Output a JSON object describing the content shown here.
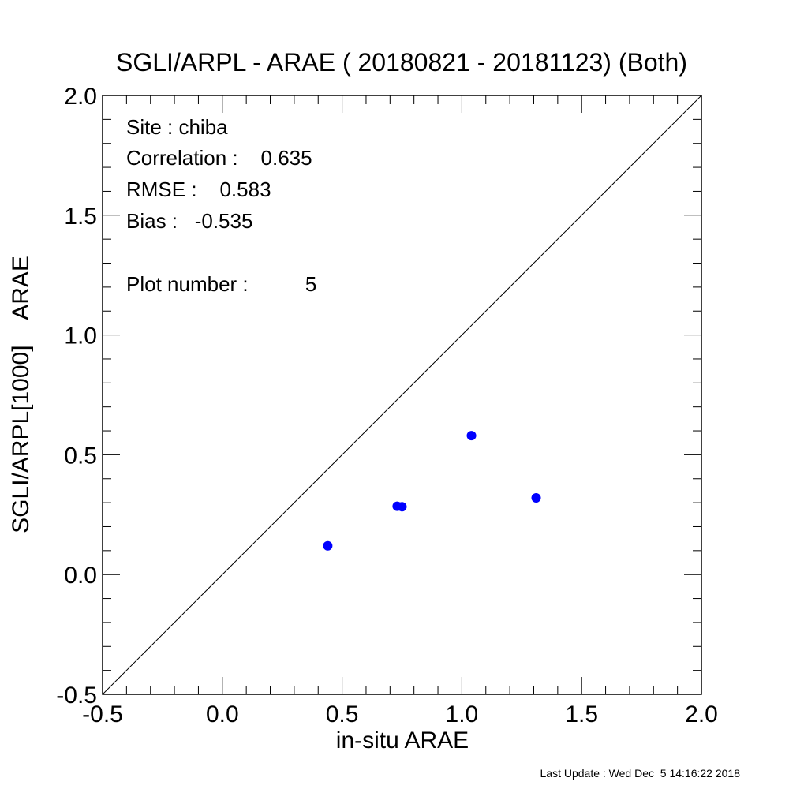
{
  "chart_data": {
    "type": "scatter",
    "title": "SGLI/ARPL - ARAE ( 20180821 - 20181123) (Both)",
    "xlabel": "in-situ ARAE",
    "ylabel": "SGLI/ARPL[1000]    ARAE",
    "xlim": [
      -0.5,
      2.0
    ],
    "ylim": [
      -0.5,
      2.0
    ],
    "xticks": [
      "-0.5",
      "0.0",
      "0.5",
      "1.0",
      "1.5",
      "2.0"
    ],
    "yticks": [
      "-0.5",
      "0.0",
      "0.5",
      "1.0",
      "1.5",
      "2.0"
    ],
    "grid": false,
    "reference_line": "1:1",
    "points": [
      {
        "x": 0.44,
        "y": 0.12
      },
      {
        "x": 0.73,
        "y": 0.285
      },
      {
        "x": 0.75,
        "y": 0.283
      },
      {
        "x": 1.04,
        "y": 0.58
      },
      {
        "x": 1.31,
        "y": 0.32
      }
    ],
    "point_color": "#0000ff"
  },
  "stats": {
    "site": "Site : chiba",
    "correlation": "Correlation :    0.635",
    "rmse": "RMSE :    0.583",
    "bias": "Bias :   -0.535",
    "plot_number": "Plot number :          5"
  },
  "footer": "Last Update : Wed Dec  5 14:16:22 2018"
}
